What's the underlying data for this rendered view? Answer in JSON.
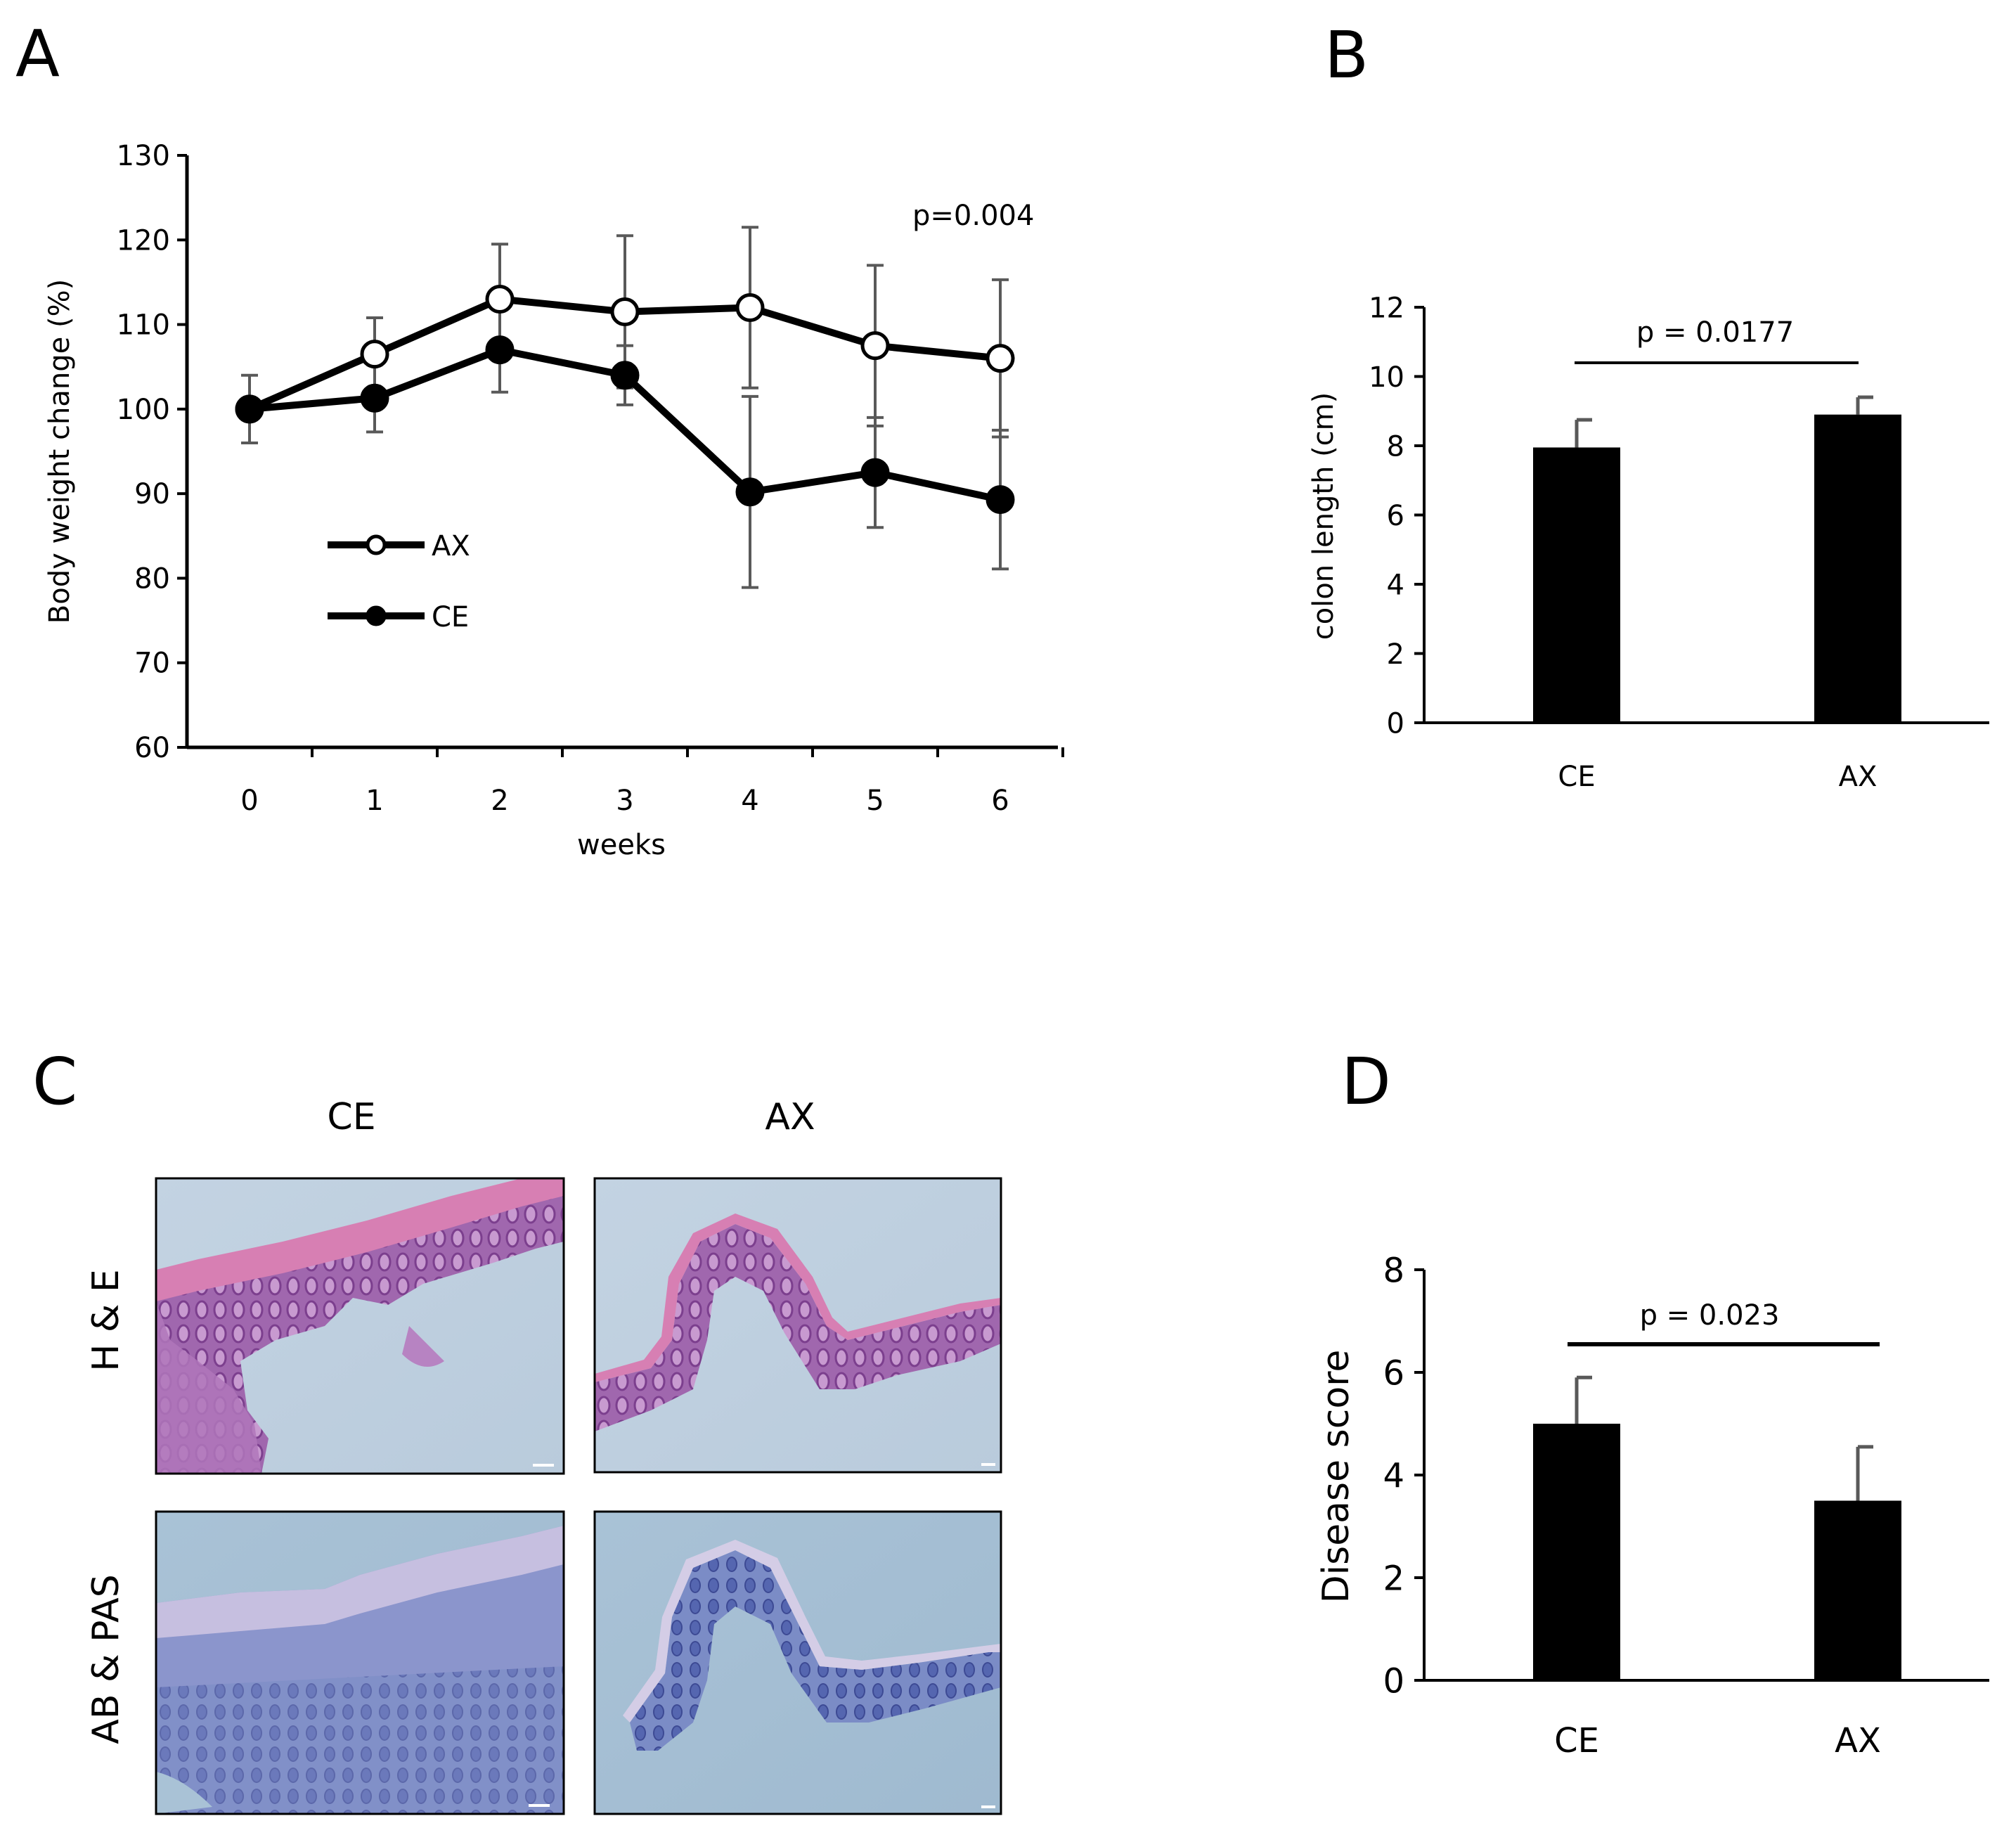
{
  "panels": {
    "a": "A",
    "b": "B",
    "c": "C",
    "d": "D"
  },
  "colors": {
    "line": "#000000",
    "errorbar": "#595959",
    "bar": "#000000"
  },
  "chart_data": [
    {
      "id": "A",
      "type": "line",
      "xlabel": "weeks",
      "ylabel": "Body weight change (%)",
      "ylim": [
        60,
        130
      ],
      "yticks": [
        60,
        70,
        80,
        90,
        100,
        110,
        120,
        130
      ],
      "x": [
        0,
        1,
        2,
        3,
        4,
        5,
        6
      ],
      "annotation": "p=0.004",
      "series": [
        {
          "name": "AX",
          "marker": "open-circle",
          "values": [
            100,
            106.5,
            113,
            111.5,
            112,
            107.5,
            106
          ],
          "errors": [
            0,
            4.3,
            6.5,
            9,
            9.5,
            9.5,
            9.3
          ]
        },
        {
          "name": "CE",
          "marker": "filled-circle",
          "values": [
            100,
            101.3,
            107,
            104,
            90.2,
            92.5,
            89.3
          ],
          "errors": [
            4,
            4,
            5,
            3.5,
            11.3,
            6.5,
            8.2
          ]
        }
      ]
    },
    {
      "id": "B",
      "type": "bar",
      "ylabel": "colon length (cm)",
      "ylim": [
        0,
        12
      ],
      "yticks": [
        0,
        2,
        4,
        6,
        8,
        10,
        12
      ],
      "categories": [
        "CE",
        "AX"
      ],
      "values": [
        7.95,
        8.9
      ],
      "errors": [
        0.8,
        0.5
      ],
      "annotation": "p = 0.0177"
    },
    {
      "id": "D",
      "type": "bar",
      "ylabel": "Disease score",
      "ylim": [
        0,
        8
      ],
      "yticks": [
        0,
        2,
        4,
        6,
        8
      ],
      "categories": [
        "CE",
        "AX"
      ],
      "values": [
        5,
        3.5
      ],
      "errors": [
        0.9,
        1.05
      ],
      "annotation": "p = 0.023"
    }
  ],
  "histology": {
    "columns": [
      "CE",
      "AX"
    ],
    "rows": [
      "H & E",
      "AB & PAS"
    ]
  }
}
